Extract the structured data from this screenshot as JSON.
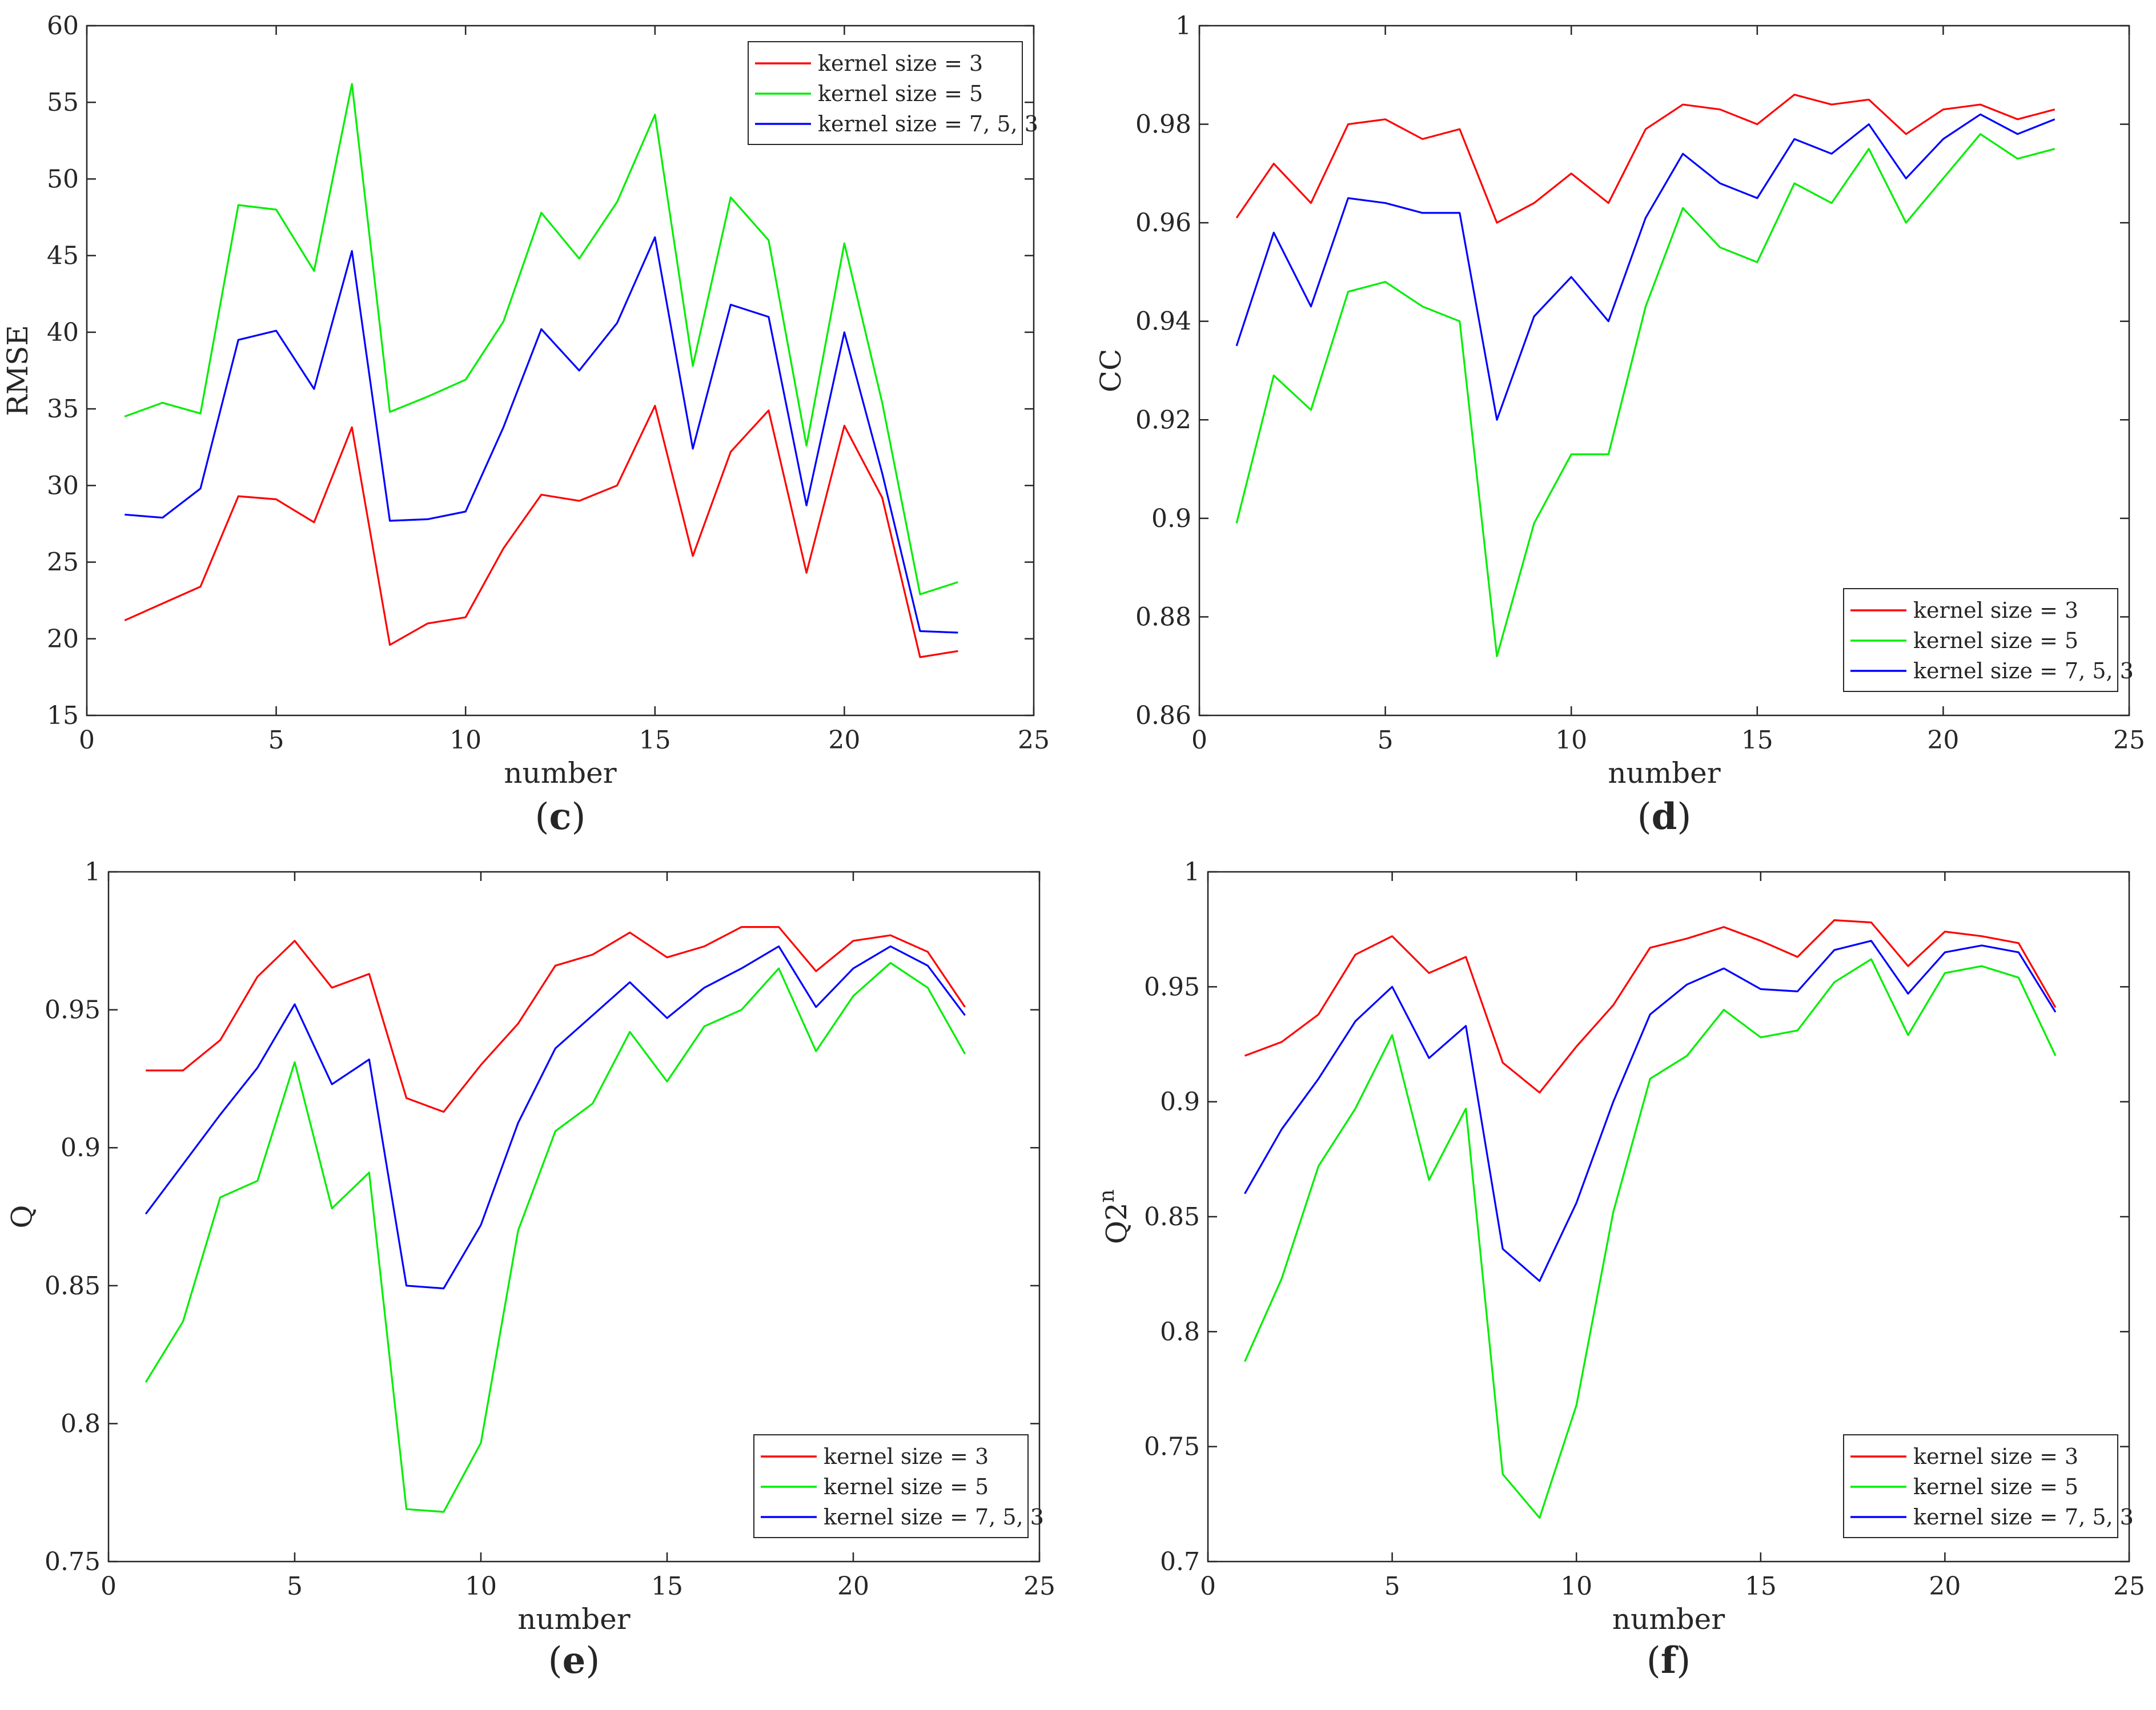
{
  "chart_data": [
    {
      "id": "c",
      "type": "line",
      "panel_label": "c",
      "xlabel": "number",
      "ylabel": "RMSE",
      "xlim": [
        0,
        25
      ],
      "ylim": [
        15,
        60
      ],
      "xticks": [
        0,
        5,
        10,
        15,
        20,
        25
      ],
      "yticks": [
        15,
        20,
        25,
        30,
        35,
        40,
        45,
        50,
        55,
        60
      ],
      "ytick_labels": [
        "15",
        "20",
        "25",
        "30",
        "35",
        "40",
        "45",
        "50",
        "55",
        "60"
      ],
      "legend_position": "top-right",
      "x": [
        1,
        2,
        3,
        4,
        5,
        6,
        7,
        8,
        9,
        10,
        11,
        12,
        13,
        14,
        15,
        16,
        17,
        18,
        19,
        20,
        21,
        22,
        23
      ],
      "series": [
        {
          "name": "kernel size = 3",
          "color": "#ff0000",
          "values": [
            21.2,
            22.3,
            23.4,
            29.3,
            29.1,
            27.6,
            33.8,
            19.6,
            21.0,
            21.4,
            25.9,
            29.4,
            29.0,
            30.0,
            35.2,
            25.4,
            32.2,
            34.9,
            24.3,
            33.9,
            29.2,
            18.8,
            19.2
          ]
        },
        {
          "name": "kernel size = 5",
          "color": "#00ee00",
          "values": [
            34.5,
            35.4,
            34.7,
            48.3,
            48.0,
            44.0,
            56.2,
            34.8,
            35.8,
            36.9,
            40.7,
            47.8,
            44.8,
            48.5,
            54.2,
            37.8,
            48.8,
            46.0,
            32.6,
            45.8,
            35.4,
            22.9,
            23.7
          ]
        },
        {
          "name": "kernel size = 7, 5, 3",
          "color": "#0000ff",
          "values": [
            28.1,
            27.9,
            29.8,
            39.5,
            40.1,
            36.3,
            45.3,
            27.7,
            27.8,
            28.3,
            33.8,
            40.2,
            37.5,
            40.6,
            46.2,
            32.4,
            41.8,
            41.0,
            28.7,
            40.0,
            30.8,
            20.5,
            20.4
          ]
        }
      ]
    },
    {
      "id": "d",
      "type": "line",
      "panel_label": "d",
      "xlabel": "number",
      "ylabel": "CC",
      "xlim": [
        0,
        25
      ],
      "ylim": [
        0.86,
        1.0
      ],
      "xticks": [
        0,
        5,
        10,
        15,
        20,
        25
      ],
      "yticks": [
        0.86,
        0.88,
        0.9,
        0.92,
        0.94,
        0.96,
        0.98,
        1.0
      ],
      "ytick_labels": [
        "0.86",
        "0.88",
        "0.9",
        "0.92",
        "0.94",
        "0.96",
        "0.98",
        "1"
      ],
      "legend_position": "bottom-right",
      "x": [
        1,
        2,
        3,
        4,
        5,
        6,
        7,
        8,
        9,
        10,
        11,
        12,
        13,
        14,
        15,
        16,
        17,
        18,
        19,
        20,
        21,
        22,
        23
      ],
      "series": [
        {
          "name": "kernel size = 3",
          "color": "#ff0000",
          "values": [
            0.961,
            0.972,
            0.964,
            0.98,
            0.981,
            0.977,
            0.979,
            0.96,
            0.964,
            0.97,
            0.964,
            0.979,
            0.984,
            0.983,
            0.98,
            0.986,
            0.984,
            0.985,
            0.978,
            0.983,
            0.984,
            0.981,
            0.983
          ]
        },
        {
          "name": "kernel size = 5",
          "color": "#00ee00",
          "values": [
            0.899,
            0.929,
            0.922,
            0.946,
            0.948,
            0.943,
            0.94,
            0.872,
            0.899,
            0.913,
            0.913,
            0.943,
            0.963,
            0.955,
            0.952,
            0.968,
            0.964,
            0.975,
            0.96,
            0.969,
            0.978,
            0.973,
            0.975
          ]
        },
        {
          "name": "kernel size = 7, 5, 3",
          "color": "#0000ff",
          "values": [
            0.935,
            0.958,
            0.943,
            0.965,
            0.964,
            0.962,
            0.962,
            0.92,
            0.941,
            0.949,
            0.94,
            0.961,
            0.974,
            0.968,
            0.965,
            0.977,
            0.974,
            0.98,
            0.969,
            0.977,
            0.982,
            0.978,
            0.981
          ]
        }
      ]
    },
    {
      "id": "e",
      "type": "line",
      "panel_label": "e",
      "xlabel": "number",
      "ylabel": "Q",
      "xlim": [
        0,
        25
      ],
      "ylim": [
        0.75,
        1.0
      ],
      "xticks": [
        0,
        5,
        10,
        15,
        20,
        25
      ],
      "yticks": [
        0.75,
        0.8,
        0.85,
        0.9,
        0.95,
        1.0
      ],
      "ytick_labels": [
        "0.75",
        "0.8",
        "0.85",
        "0.9",
        "0.95",
        "1"
      ],
      "legend_position": "bottom-right",
      "x": [
        1,
        2,
        3,
        4,
        5,
        6,
        7,
        8,
        9,
        10,
        11,
        12,
        13,
        14,
        15,
        16,
        17,
        18,
        19,
        20,
        21,
        22,
        23
      ],
      "series": [
        {
          "name": "kernel size = 3",
          "color": "#ff0000",
          "values": [
            0.928,
            0.928,
            0.939,
            0.962,
            0.975,
            0.958,
            0.963,
            0.918,
            0.913,
            0.93,
            0.945,
            0.966,
            0.97,
            0.978,
            0.969,
            0.973,
            0.98,
            0.98,
            0.964,
            0.975,
            0.977,
            0.971,
            0.951
          ]
        },
        {
          "name": "kernel size = 5",
          "color": "#00ee00",
          "values": [
            0.815,
            0.837,
            0.882,
            0.888,
            0.931,
            0.878,
            0.891,
            0.769,
            0.768,
            0.793,
            0.87,
            0.906,
            0.916,
            0.942,
            0.924,
            0.944,
            0.95,
            0.965,
            0.935,
            0.955,
            0.967,
            0.958,
            0.934
          ]
        },
        {
          "name": "kernel size = 7, 5, 3",
          "color": "#0000ff",
          "values": [
            0.876,
            0.894,
            0.912,
            0.929,
            0.952,
            0.923,
            0.932,
            0.85,
            0.849,
            0.872,
            0.909,
            0.936,
            0.948,
            0.96,
            0.947,
            0.958,
            0.965,
            0.973,
            0.951,
            0.965,
            0.973,
            0.966,
            0.948
          ]
        }
      ]
    },
    {
      "id": "f",
      "type": "line",
      "panel_label": "f",
      "xlabel": "number",
      "ylabel": "Q2",
      "ylabel_sup": "n",
      "xlim": [
        0,
        25
      ],
      "ylim": [
        0.7,
        1.0
      ],
      "xticks": [
        0,
        5,
        10,
        15,
        20,
        25
      ],
      "yticks": [
        0.7,
        0.75,
        0.8,
        0.85,
        0.9,
        0.95,
        1.0
      ],
      "ytick_labels": [
        "0.7",
        "0.75",
        "0.8",
        "0.85",
        "0.9",
        "0.95",
        "1"
      ],
      "legend_position": "bottom-right",
      "x": [
        1,
        2,
        3,
        4,
        5,
        6,
        7,
        8,
        9,
        10,
        11,
        12,
        13,
        14,
        15,
        16,
        17,
        18,
        19,
        20,
        21,
        22,
        23
      ],
      "series": [
        {
          "name": "kernel size = 3",
          "color": "#ff0000",
          "values": [
            0.92,
            0.926,
            0.938,
            0.964,
            0.972,
            0.956,
            0.963,
            0.917,
            0.904,
            0.924,
            0.942,
            0.967,
            0.971,
            0.976,
            0.97,
            0.963,
            0.979,
            0.978,
            0.959,
            0.974,
            0.972,
            0.969,
            0.941
          ]
        },
        {
          "name": "kernel size = 5",
          "color": "#00ee00",
          "values": [
            0.787,
            0.823,
            0.872,
            0.897,
            0.929,
            0.866,
            0.897,
            0.738,
            0.719,
            0.768,
            0.852,
            0.91,
            0.92,
            0.94,
            0.928,
            0.931,
            0.952,
            0.962,
            0.929,
            0.956,
            0.959,
            0.954,
            0.92
          ]
        },
        {
          "name": "kernel size = 7, 5, 3",
          "color": "#0000ff",
          "values": [
            0.86,
            0.888,
            0.91,
            0.935,
            0.95,
            0.919,
            0.933,
            0.836,
            0.822,
            0.856,
            0.9,
            0.938,
            0.951,
            0.958,
            0.949,
            0.948,
            0.966,
            0.97,
            0.947,
            0.965,
            0.968,
            0.965,
            0.939
          ]
        }
      ]
    }
  ]
}
